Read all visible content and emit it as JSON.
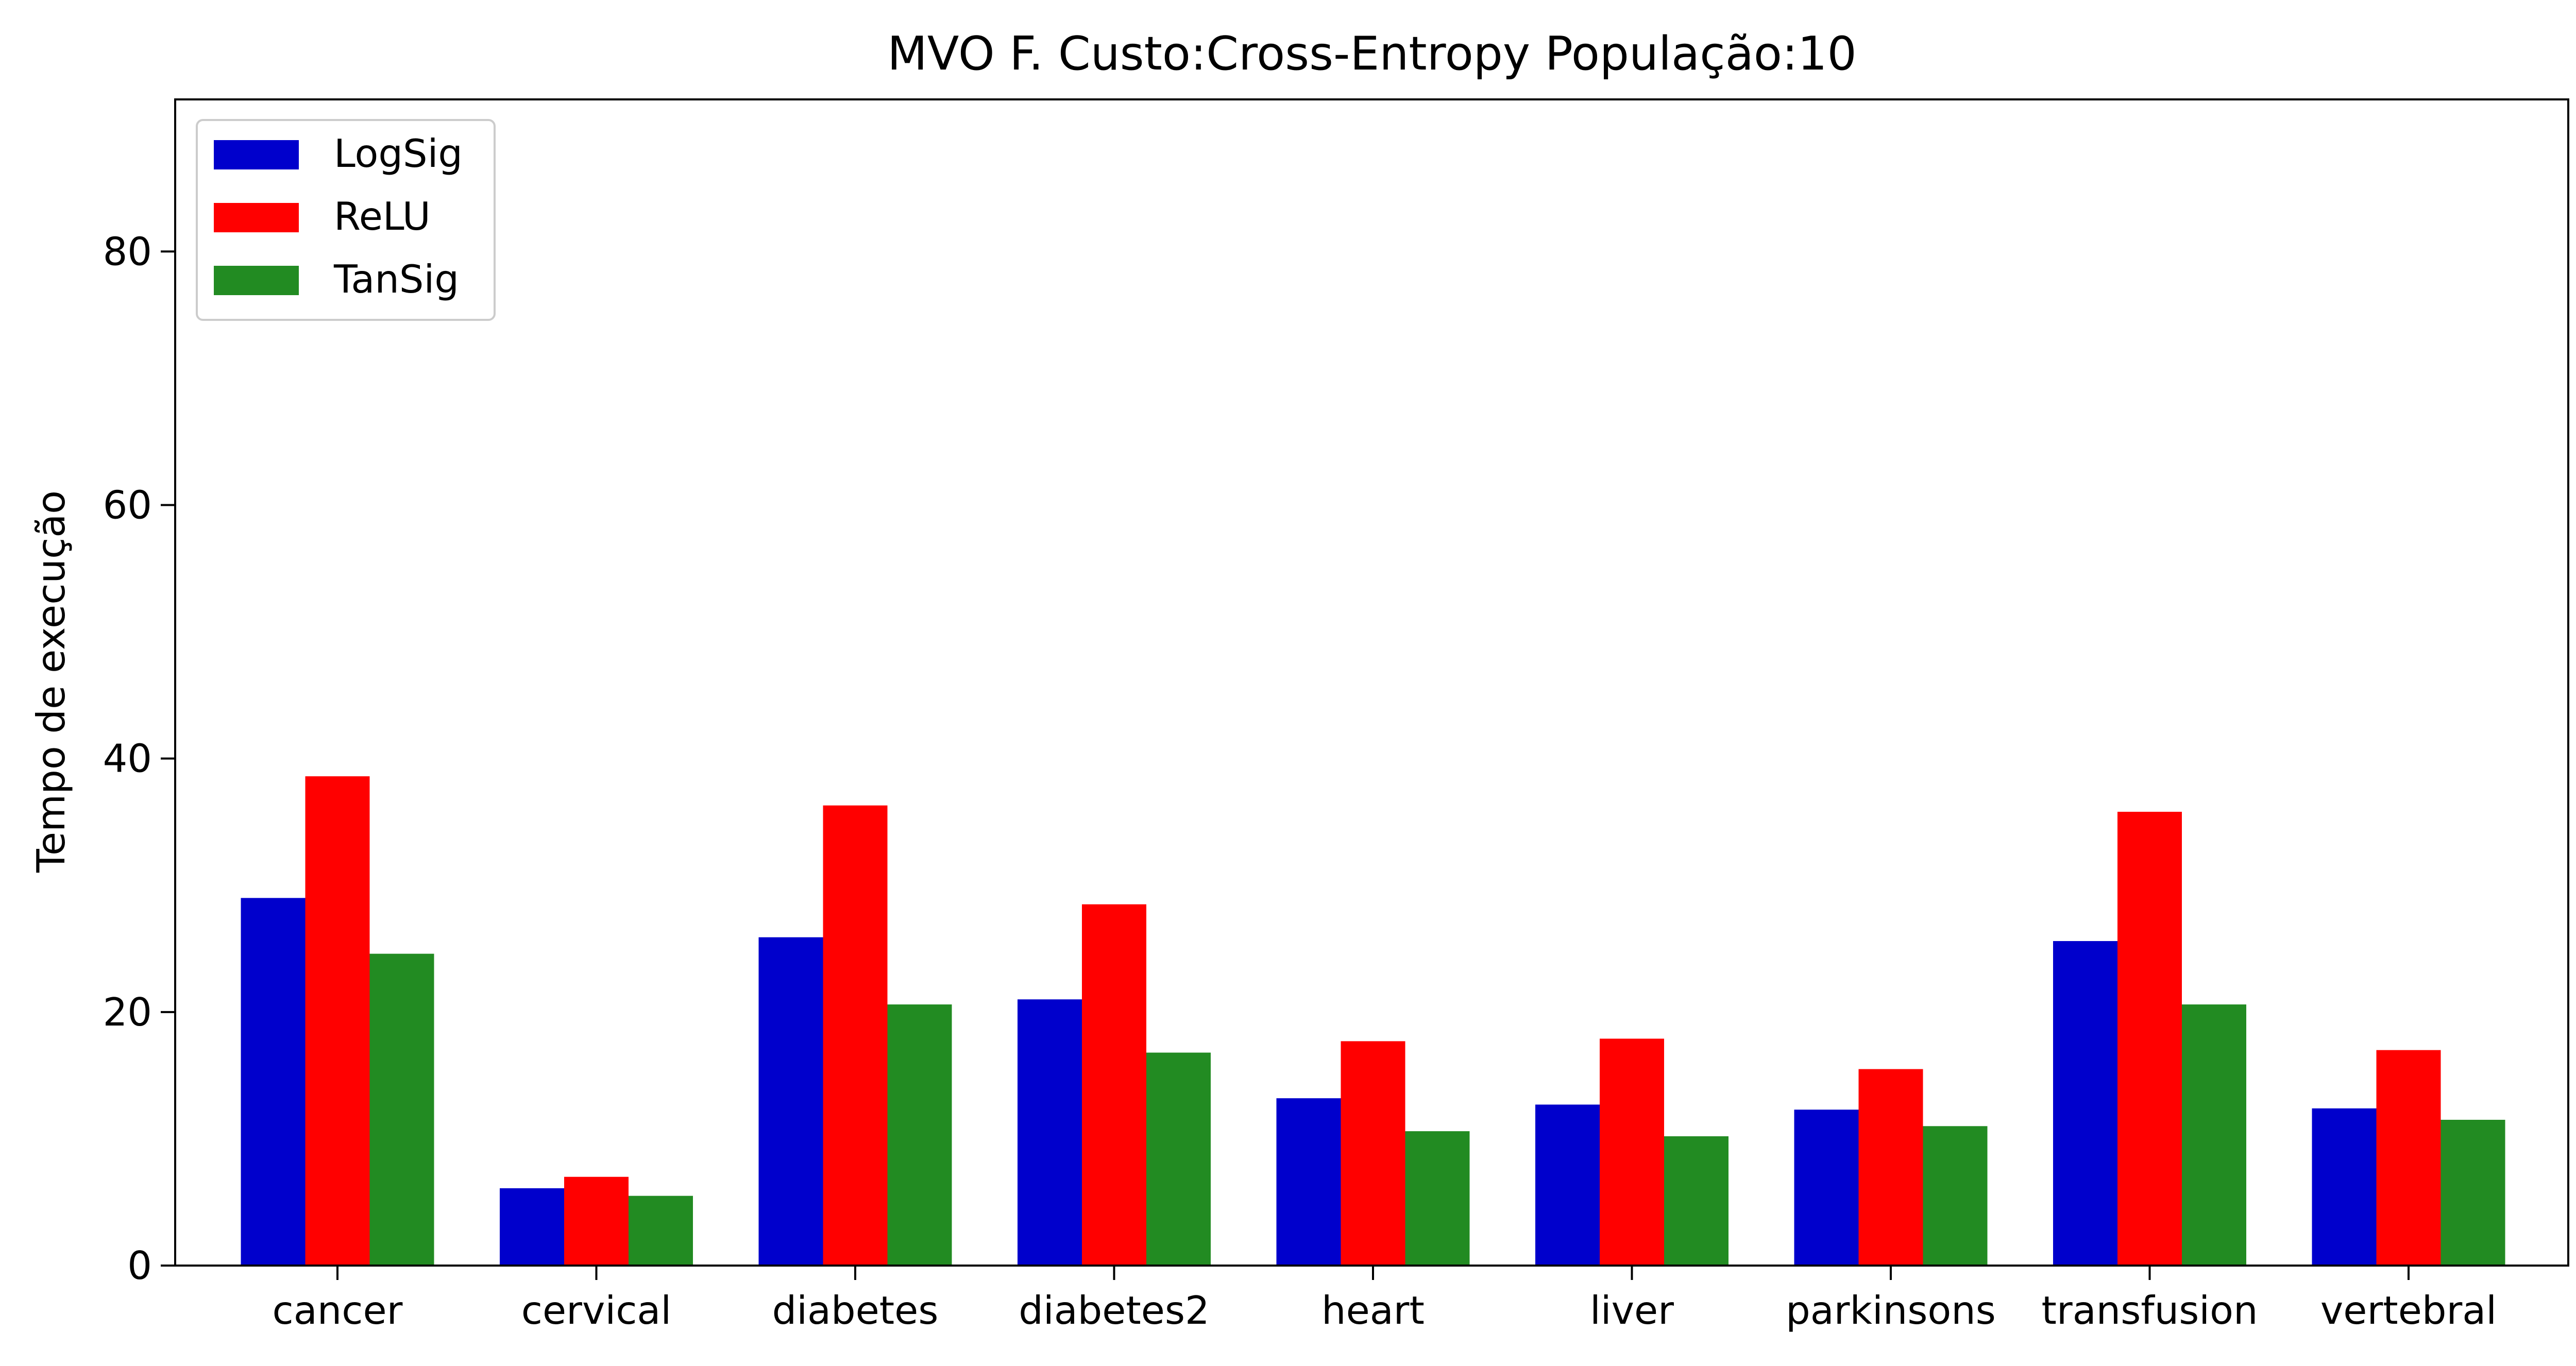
{
  "chart_data": {
    "type": "bar",
    "title": "MVO F. Custo:Cross-Entropy População:10",
    "xlabel": "",
    "ylabel": "Tempo de execução",
    "ylim": [
      0,
      92
    ],
    "yticks": [
      0,
      20,
      40,
      60,
      80
    ],
    "categories": [
      "cancer",
      "cervical",
      "diabetes",
      "diabetes2",
      "heart",
      "liver",
      "parkinsons",
      "transfusion",
      "vertebral"
    ],
    "series": [
      {
        "name": "LogSig",
        "color": "#0000cc",
        "values": [
          29.0,
          6.1,
          25.9,
          21.0,
          13.2,
          12.7,
          12.3,
          25.6,
          12.4
        ]
      },
      {
        "name": "ReLU",
        "color": "#ff0000",
        "values": [
          38.6,
          7.0,
          36.3,
          28.5,
          17.7,
          17.9,
          15.5,
          35.8,
          17.0
        ]
      },
      {
        "name": "TanSig",
        "color": "#228b22",
        "values": [
          24.6,
          5.5,
          20.6,
          16.8,
          10.6,
          10.2,
          11.0,
          20.6,
          11.5
        ]
      }
    ],
    "legend": "top-left",
    "grid": false
  }
}
